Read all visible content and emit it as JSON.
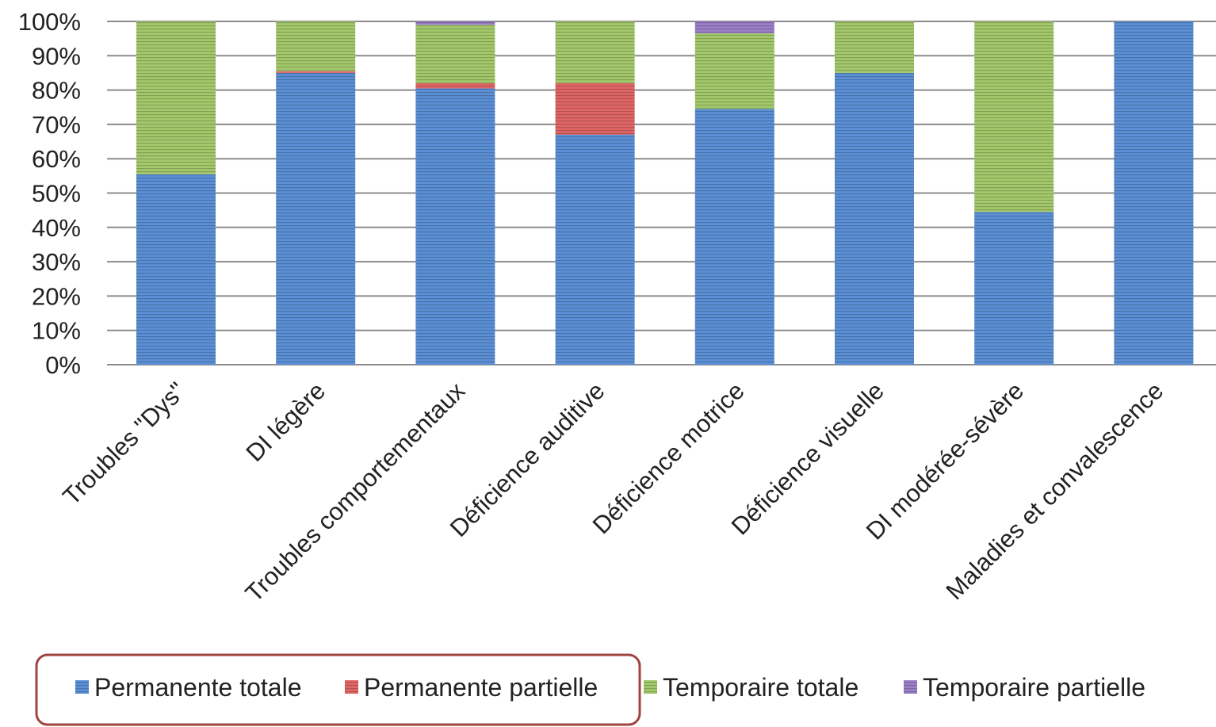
{
  "chart_data": {
    "type": "bar",
    "stacked": true,
    "percent": true,
    "categories": [
      "Troubles \"Dys\"",
      "DI légère",
      "Troubles comportementaux",
      "Déficience auditive",
      "Déficience motrice",
      "Déficience visuelle",
      "DI modérée-sévère",
      "Maladies et convalescence"
    ],
    "series": [
      {
        "name": "Permanente totale",
        "color": "#5b8fd6",
        "values": [
          55.5,
          85,
          80.5,
          67,
          74.5,
          85,
          44.5,
          100
        ]
      },
      {
        "name": "Permanente partielle",
        "color": "#e06666",
        "values": [
          0,
          0.5,
          1.5,
          15,
          0,
          0,
          0,
          0
        ]
      },
      {
        "name": "Temporaire totale",
        "color": "#a4c96b",
        "values": [
          44.5,
          14.5,
          17,
          18,
          22,
          15,
          55.5,
          0
        ]
      },
      {
        "name": "Temporaire partielle",
        "color": "#9b7fc8",
        "values": [
          0,
          0,
          1,
          0,
          3.5,
          0,
          0,
          0
        ]
      }
    ],
    "yticks": [
      "0%",
      "10%",
      "20%",
      "30%",
      "40%",
      "50%",
      "60%",
      "70%",
      "80%",
      "90%",
      "100%"
    ],
    "ylim": [
      0,
      100
    ],
    "grid": true,
    "legend_position": "bottom"
  }
}
